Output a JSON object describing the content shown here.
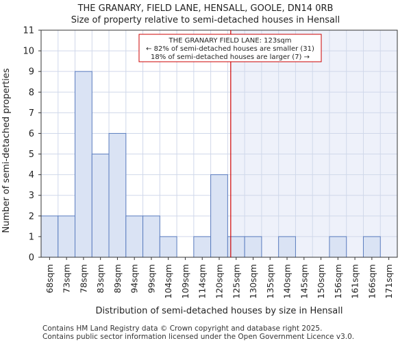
{
  "header": {
    "title": "THE GRANARY, FIELD LANE, HENSALL, GOOLE, DN14 0RB",
    "subtitle": "Size of property relative to semi-detached houses in Hensall"
  },
  "footer": {
    "line1": "Contains HM Land Registry data © Crown copyright and database right 2025.",
    "line2": "Contains public sector information licensed under the Open Government Licence v3.0."
  },
  "chart_data": {
    "type": "bar",
    "title": "THE GRANARY, FIELD LANE, HENSALL, GOOLE, DN14 0RB",
    "subtitle": "Size of property relative to semi-detached houses in Hensall",
    "xlabel": "Distribution of semi-detached houses by size in Hensall",
    "ylabel": "Number of semi-detached properties",
    "categories": [
      "68sqm",
      "73sqm",
      "78sqm",
      "83sqm",
      "89sqm",
      "94sqm",
      "99sqm",
      "104sqm",
      "109sqm",
      "114sqm",
      "120sqm",
      "125sqm",
      "130sqm",
      "135sqm",
      "140sqm",
      "145sqm",
      "150sqm",
      "156sqm",
      "161sqm",
      "166sqm",
      "171sqm"
    ],
    "values": [
      2,
      2,
      9,
      5,
      6,
      2,
      2,
      1,
      0,
      1,
      4,
      1,
      1,
      0,
      1,
      0,
      0,
      1,
      0,
      1,
      0
    ],
    "ylim": [
      0,
      11
    ],
    "yticks": [
      0,
      1,
      2,
      3,
      4,
      5,
      6,
      7,
      8,
      9,
      10,
      11
    ],
    "grid": true,
    "marker": {
      "value_sqm": 123,
      "label_line1": "THE GRANARY FIELD LANE: 123sqm",
      "label_line2": "← 82% of semi-detached houses are smaller (31)",
      "label_line3": "18% of semi-detached houses are larger (7) →",
      "color": "#cc0000"
    },
    "colors": {
      "bar_fill": "#dae3f4",
      "bar_stroke": "#5b7dbf",
      "highlight_region": "#eef1fa",
      "grid": "#d0d8ea"
    }
  }
}
